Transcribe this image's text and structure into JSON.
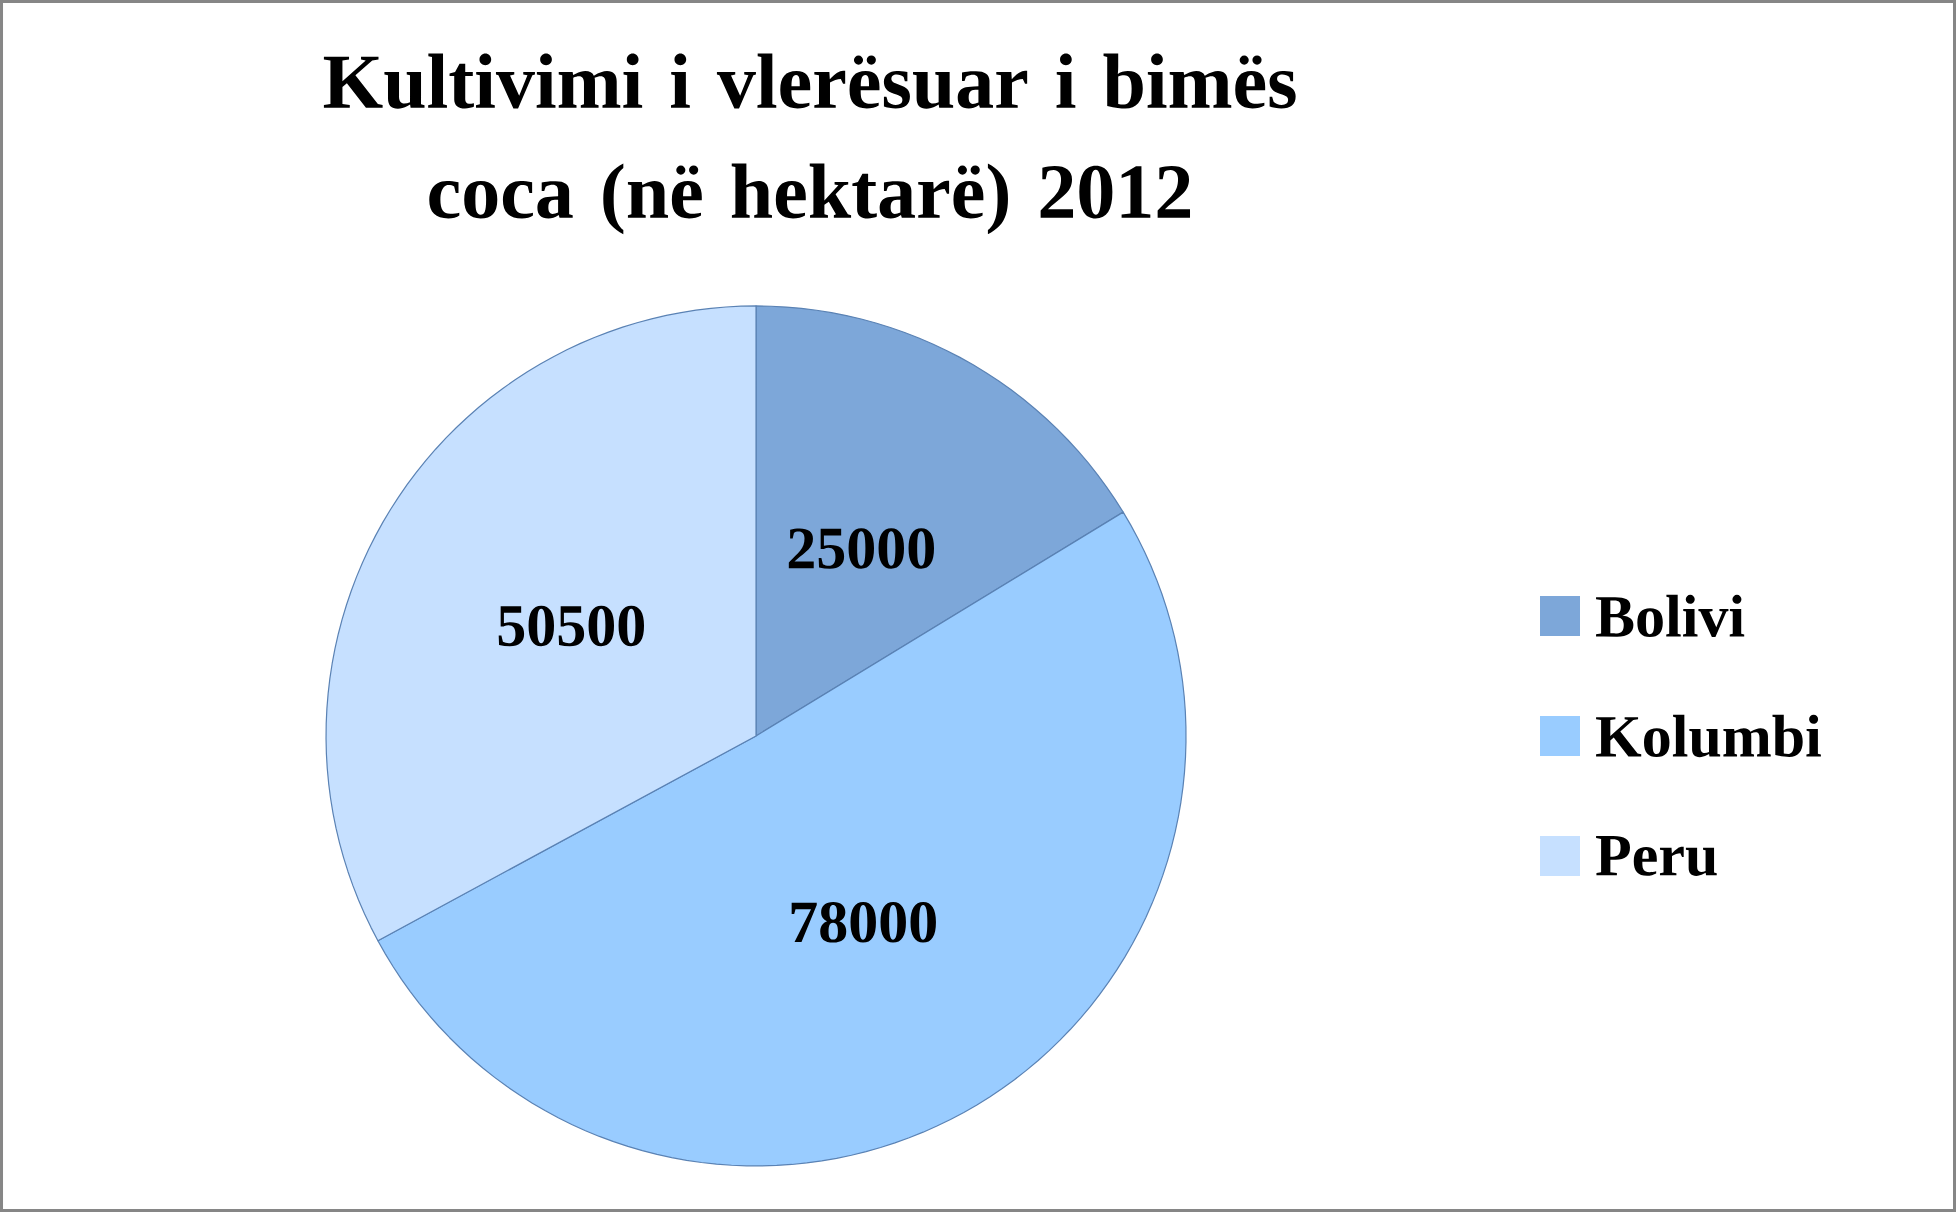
{
  "chart_data": {
    "type": "pie",
    "title": "Kultivimi i vlerësuar i bimës coca (në hektarë) 2012",
    "categories": [
      "Bolivi",
      "Kolumbi",
      "Peru"
    ],
    "values": [
      25000,
      78000,
      50500
    ],
    "colors": [
      "#7da7d9",
      "#99ccff",
      "#c6e0ff"
    ],
    "data_labels": true,
    "legend": "right"
  }
}
